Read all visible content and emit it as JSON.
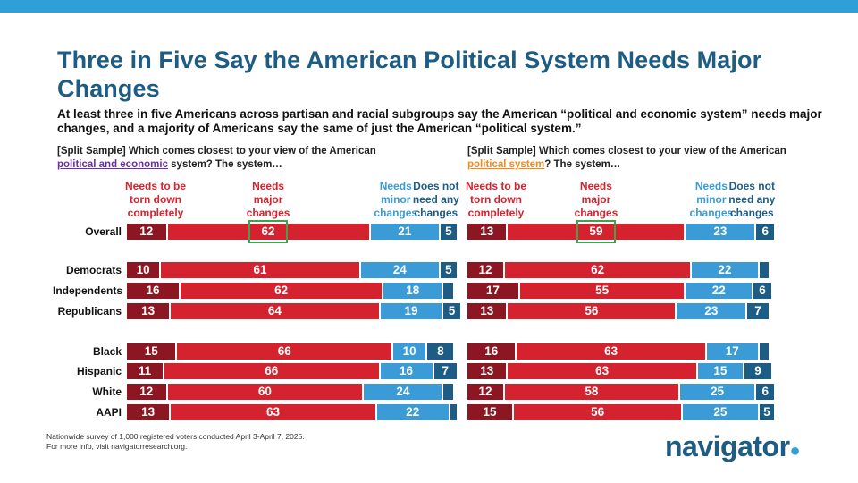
{
  "title": "Three in Five Say the American Political System Needs Major Changes",
  "subtitle": "At least three in five Americans across partisan and racial subgroups say the American “political and economic system” needs major changes, and a majority of Americans say the same of just the American “political system.”",
  "colors": {
    "torn_down": "#8c1722",
    "major": "#d4232e",
    "minor": "#3a9bd6",
    "not_need": "#1d5c84",
    "title": "#1d5c84",
    "highlight": "#3fa34d",
    "link_left": "#6b2fa0",
    "link_right": "#f08a1c"
  },
  "questions": {
    "left": {
      "pre": "[Split Sample] Which comes closest to your view of the American ",
      "link": "political and economic",
      "post": " system? The system…"
    },
    "right": {
      "pre": "[Split Sample] Which comes closest to your view of the American ",
      "link": "political system",
      "post": "? The system…"
    }
  },
  "chart_data": [
    {
      "type": "bar",
      "orientation": "horizontal-stacked",
      "title": "political and economic system",
      "series_names": [
        "Needs to be torn down completely",
        "Needs major changes",
        "Needs minor changes",
        "Does not need any changes"
      ],
      "header_lines": [
        [
          "Needs to be",
          "torn down",
          "completely"
        ],
        [
          "Needs",
          "major",
          "changes"
        ],
        [
          "Needs",
          "minor",
          "changes"
        ],
        [
          "Does not",
          "need any",
          "changes"
        ]
      ],
      "categories": [
        "Overall",
        "Democrats",
        "Independents",
        "Republicans",
        "Black",
        "Hispanic",
        "White",
        "AAPI"
      ],
      "rows": [
        {
          "label": "Overall",
          "values": [
            12,
            62,
            21,
            5
          ],
          "labels": [
            "12",
            "62",
            "21",
            "5"
          ]
        },
        {
          "label": "Democrats",
          "values": [
            10,
            61,
            24,
            5
          ],
          "labels": [
            "10",
            "61",
            "24",
            "5"
          ]
        },
        {
          "label": "Independents",
          "values": [
            16,
            62,
            18,
            3
          ],
          "labels": [
            "16",
            "62",
            "18",
            ""
          ]
        },
        {
          "label": "Republicans",
          "values": [
            13,
            64,
            19,
            5
          ],
          "labels": [
            "13",
            "64",
            "19",
            "5"
          ]
        },
        {
          "label": "Black",
          "values": [
            15,
            66,
            10,
            8
          ],
          "labels": [
            "15",
            "66",
            "10",
            "8"
          ]
        },
        {
          "label": "Hispanic",
          "values": [
            11,
            66,
            16,
            7
          ],
          "labels": [
            "11",
            "66",
            "16",
            "7"
          ]
        },
        {
          "label": "White",
          "values": [
            12,
            60,
            24,
            3
          ],
          "labels": [
            "12",
            "60",
            "24",
            ""
          ]
        },
        {
          "label": "AAPI",
          "values": [
            13,
            63,
            22,
            2
          ],
          "labels": [
            "13",
            "63",
            "22",
            ""
          ]
        }
      ],
      "highlight": {
        "row": 0,
        "series": 1
      }
    },
    {
      "type": "bar",
      "orientation": "horizontal-stacked",
      "title": "political system",
      "series_names": [
        "Needs to be torn down completely",
        "Needs major changes",
        "Needs minor changes",
        "Does not need any changes"
      ],
      "header_lines": [
        [
          "Needs to be",
          "torn down",
          "completely"
        ],
        [
          "Needs",
          "major",
          "changes"
        ],
        [
          "Needs",
          "minor",
          "changes"
        ],
        [
          "Does not",
          "need any",
          "changes"
        ]
      ],
      "categories": [
        "Overall",
        "Democrats",
        "Independents",
        "Republicans",
        "Black",
        "Hispanic",
        "White",
        "AAPI"
      ],
      "rows": [
        {
          "label": "Overall",
          "values": [
            13,
            59,
            23,
            6
          ],
          "labels": [
            "13",
            "59",
            "23",
            "6"
          ]
        },
        {
          "label": "Democrats",
          "values": [
            12,
            62,
            22,
            3
          ],
          "labels": [
            "12",
            "62",
            "22",
            ""
          ]
        },
        {
          "label": "Independents",
          "values": [
            17,
            55,
            22,
            6
          ],
          "labels": [
            "17",
            "55",
            "22",
            "6"
          ]
        },
        {
          "label": "Republicans",
          "values": [
            13,
            56,
            23,
            7
          ],
          "labels": [
            "13",
            "56",
            "23",
            "7"
          ]
        },
        {
          "label": "Black",
          "values": [
            16,
            63,
            17,
            3
          ],
          "labels": [
            "16",
            "63",
            "17",
            ""
          ]
        },
        {
          "label": "Hispanic",
          "values": [
            13,
            63,
            15,
            9
          ],
          "labels": [
            "13",
            "63",
            "15",
            "9"
          ]
        },
        {
          "label": "White",
          "values": [
            12,
            58,
            25,
            6
          ],
          "labels": [
            "12",
            "58",
            "25",
            "6"
          ]
        },
        {
          "label": "AAPI",
          "values": [
            15,
            56,
            25,
            5
          ],
          "labels": [
            "15",
            "56",
            "25",
            "5"
          ]
        }
      ],
      "highlight": {
        "row": 0,
        "series": 1
      }
    }
  ],
  "footnote": {
    "line1": "Nationwide survey of 1,000 registered voters conducted April 3-April 7, 2025.",
    "line2": "For more info, visit navigatorresearch.org."
  },
  "logo": {
    "text": "navigator",
    "mark": "●"
  }
}
